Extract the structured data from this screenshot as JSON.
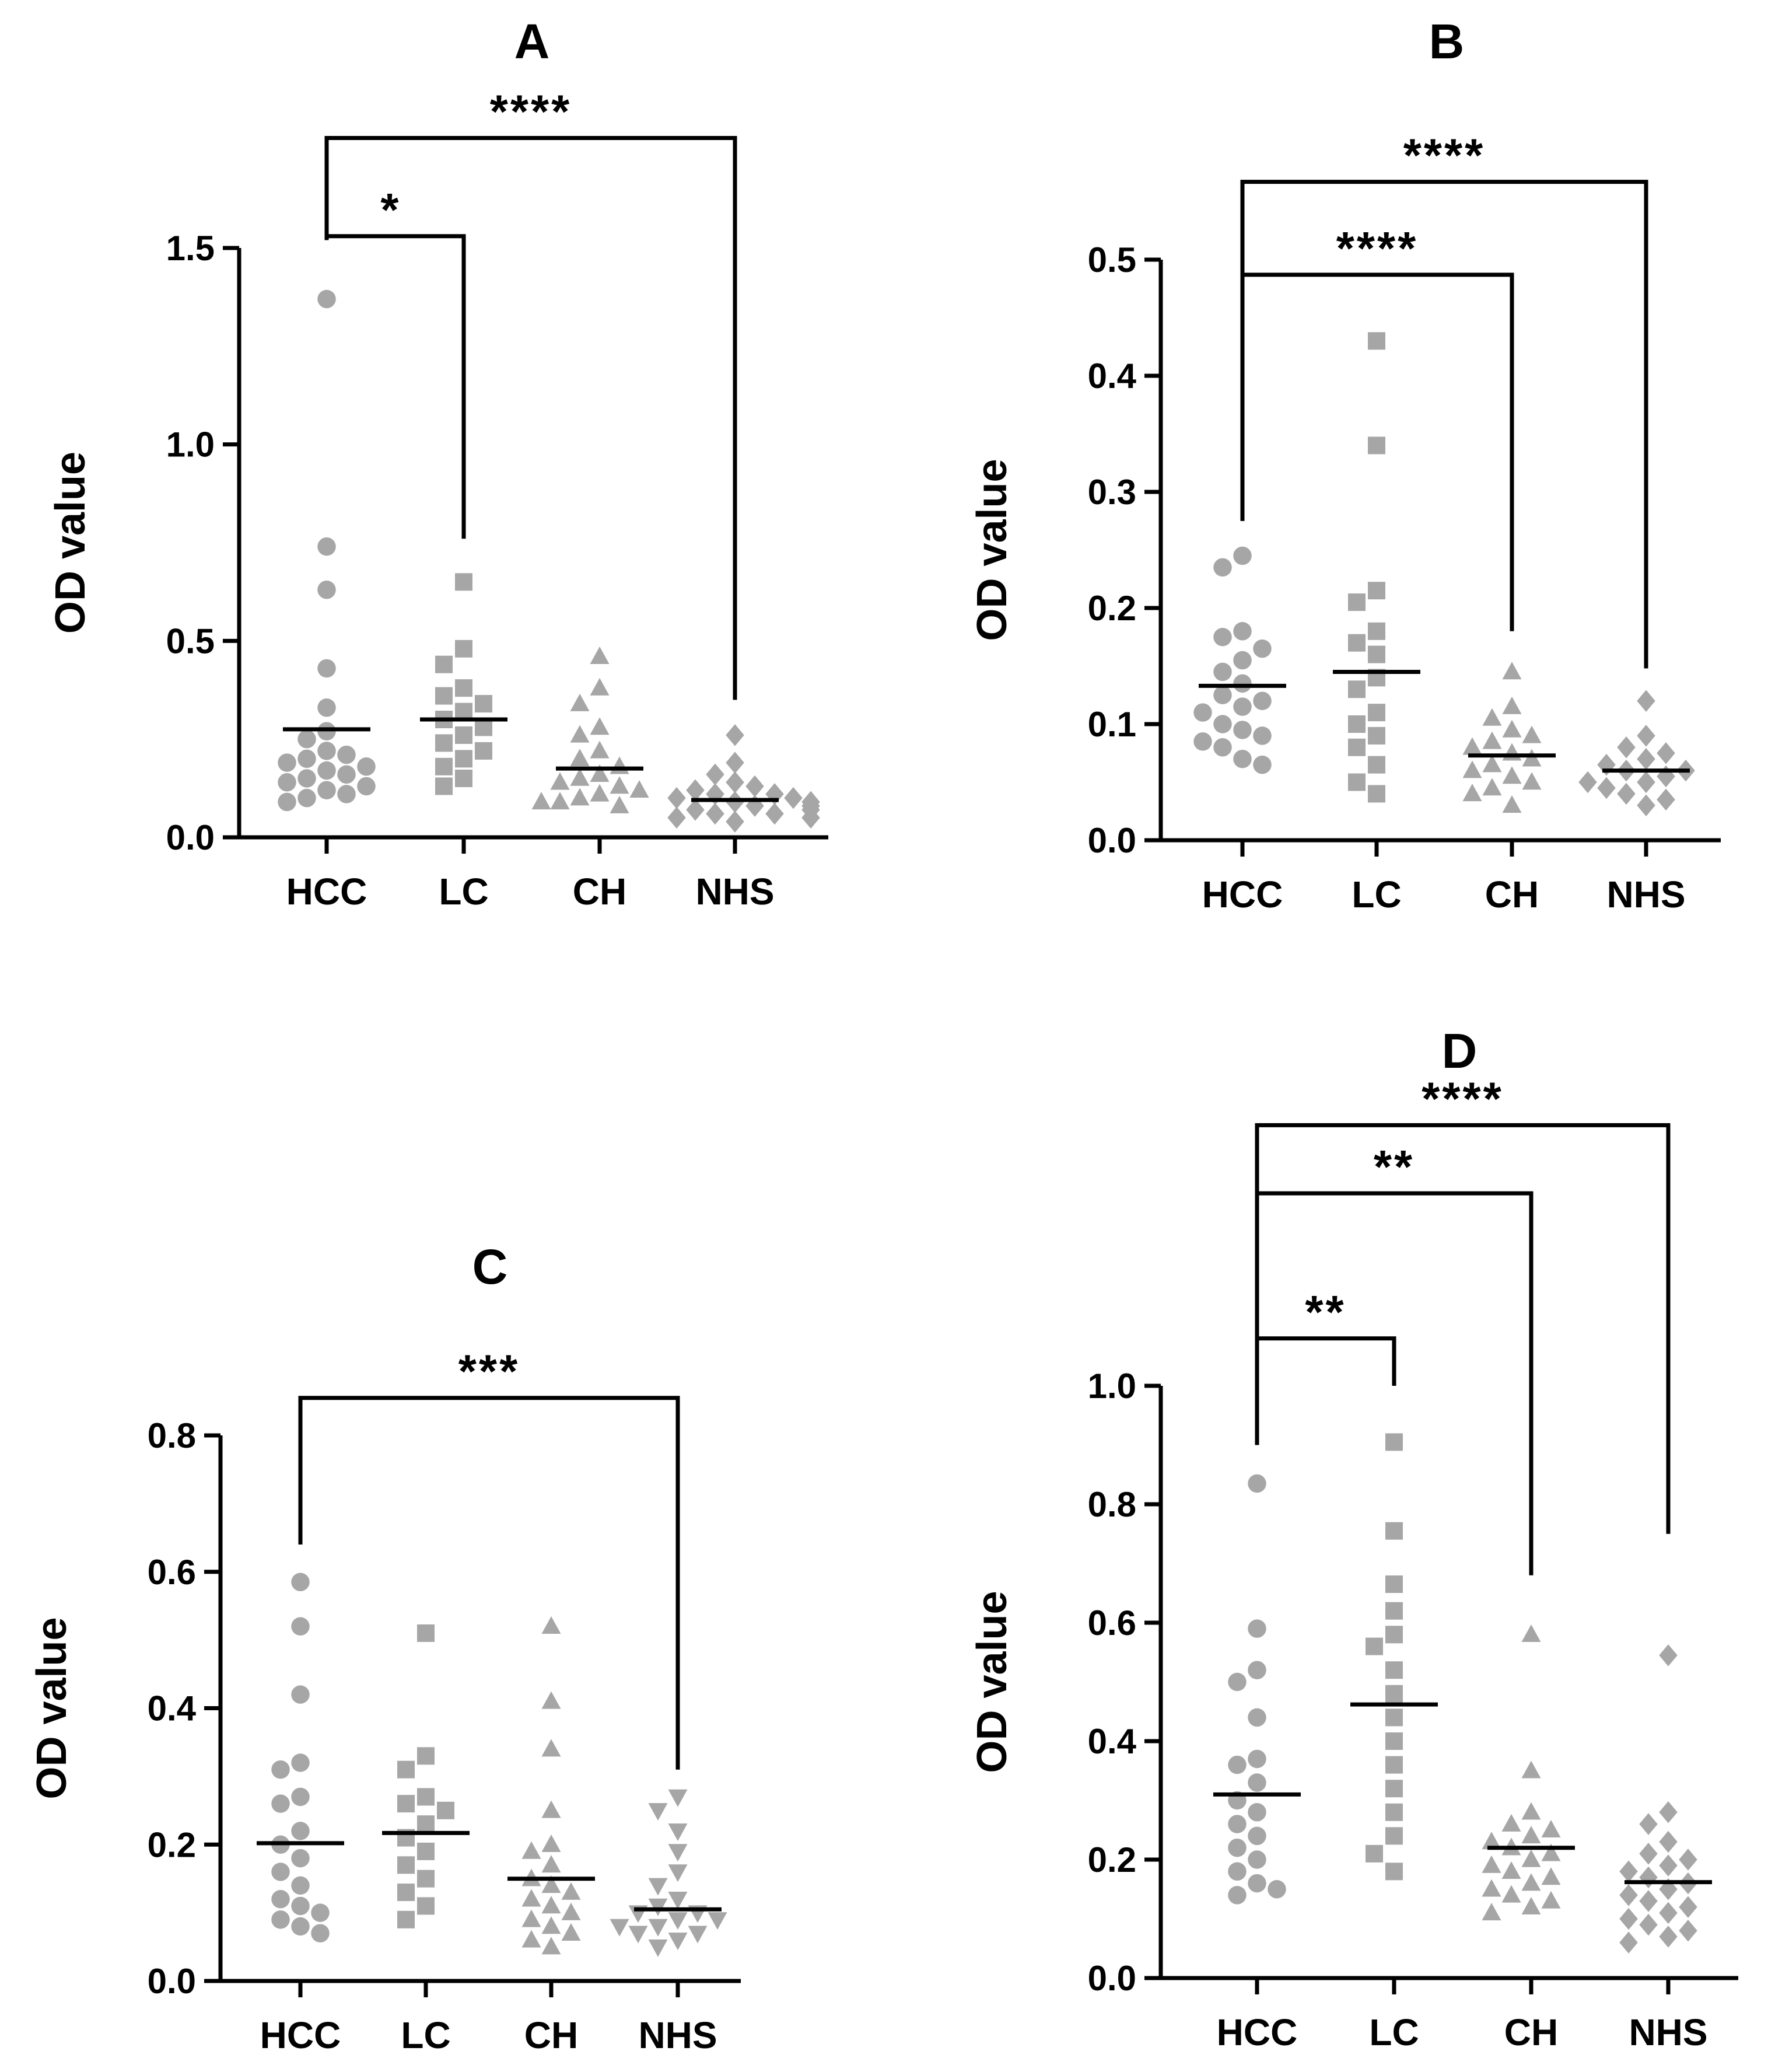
{
  "chart_data": [
    {
      "type": "scatter",
      "title": "A",
      "xlabel": "",
      "ylabel": "OD value",
      "ylim": [
        0,
        1.5
      ],
      "yticks": [
        0.0,
        0.5,
        1.0,
        1.5
      ],
      "ytick_labels": [
        "0.0",
        "0.5",
        "1.0",
        "1.5"
      ],
      "categories": [
        "HCC",
        "LC",
        "CH",
        "NHS"
      ],
      "marker_color": "#a6a6a6",
      "series": [
        {
          "name": "HCC",
          "marker": "circle",
          "mean": 0.275,
          "values": [
            1.37,
            0.74,
            0.63,
            0.43,
            0.33,
            0.27,
            0.25,
            0.22,
            0.21,
            0.2,
            0.19,
            0.18,
            0.17,
            0.16,
            0.15,
            0.14,
            0.13,
            0.12,
            0.11,
            0.1,
            0.09
          ]
        },
        {
          "name": "LC",
          "marker": "square",
          "mean": 0.3,
          "values": [
            0.65,
            0.48,
            0.44,
            0.38,
            0.36,
            0.34,
            0.32,
            0.3,
            0.28,
            0.26,
            0.24,
            0.22,
            0.2,
            0.18,
            0.15,
            0.13
          ]
        },
        {
          "name": "CH",
          "marker": "triangle",
          "mean": 0.175,
          "values": [
            0.46,
            0.38,
            0.34,
            0.28,
            0.26,
            0.22,
            0.2,
            0.18,
            0.16,
            0.15,
            0.14,
            0.13,
            0.12,
            0.11,
            0.1,
            0.09,
            0.09,
            0.08
          ]
        },
        {
          "name": "NHS",
          "marker": "diamond",
          "mean": 0.095,
          "values": [
            0.26,
            0.19,
            0.16,
            0.14,
            0.13,
            0.12,
            0.11,
            0.11,
            0.1,
            0.1,
            0.09,
            0.09,
            0.08,
            0.08,
            0.07,
            0.07,
            0.06,
            0.06,
            0.05,
            0.05,
            0.04
          ]
        }
      ],
      "significance": [
        {
          "from": "HCC",
          "to": "LC",
          "label": "*",
          "y": 1.53,
          "left_end": 1.52,
          "right_end": 0.76
        },
        {
          "from": "HCC",
          "to": "NHS",
          "label": "****",
          "y": 1.78,
          "left_end": 1.52,
          "right_end": 0.35
        }
      ]
    },
    {
      "type": "scatter",
      "title": "B",
      "xlabel": "",
      "ylabel": "OD value",
      "ylim": [
        0,
        0.5
      ],
      "yticks": [
        0.0,
        0.1,
        0.2,
        0.3,
        0.4,
        0.5
      ],
      "ytick_labels": [
        "0.0",
        "0.1",
        "0.2",
        "0.3",
        "0.4",
        "0.5"
      ],
      "categories": [
        "HCC",
        "LC",
        "CH",
        "NHS"
      ],
      "marker_color": "#a6a6a6",
      "series": [
        {
          "name": "HCC",
          "marker": "circle",
          "mean": 0.133,
          "values": [
            0.245,
            0.235,
            0.18,
            0.175,
            0.165,
            0.155,
            0.145,
            0.135,
            0.125,
            0.12,
            0.115,
            0.11,
            0.1,
            0.095,
            0.09,
            0.085,
            0.08,
            0.07,
            0.065
          ]
        },
        {
          "name": "LC",
          "marker": "square",
          "mean": 0.145,
          "values": [
            0.43,
            0.34,
            0.215,
            0.205,
            0.18,
            0.17,
            0.16,
            0.14,
            0.13,
            0.11,
            0.1,
            0.09,
            0.08,
            0.065,
            0.05,
            0.04
          ]
        },
        {
          "name": "CH",
          "marker": "triangle",
          "mean": 0.073,
          "values": [
            0.145,
            0.115,
            0.105,
            0.095,
            0.09,
            0.085,
            0.08,
            0.075,
            0.07,
            0.065,
            0.06,
            0.055,
            0.05,
            0.045,
            0.04,
            0.03
          ]
        },
        {
          "name": "NHS",
          "marker": "diamond",
          "mean": 0.06,
          "values": [
            0.12,
            0.09,
            0.08,
            0.075,
            0.07,
            0.065,
            0.06,
            0.06,
            0.055,
            0.05,
            0.05,
            0.045,
            0.04,
            0.035,
            0.03
          ]
        }
      ],
      "significance": [
        {
          "from": "HCC",
          "to": "CH",
          "label": "****",
          "y": 0.487,
          "left_end": 0.275,
          "right_end": 0.18
        },
        {
          "from": "HCC",
          "to": "NHS",
          "label": "****",
          "y": 0.567,
          "left_end": 0.275,
          "right_end": 0.148
        }
      ]
    },
    {
      "type": "scatter",
      "title": "C",
      "xlabel": "",
      "ylabel": "OD value",
      "ylim": [
        0,
        0.8
      ],
      "yticks": [
        0.0,
        0.2,
        0.4,
        0.6,
        0.8
      ],
      "ytick_labels": [
        "0.0",
        "0.2",
        "0.4",
        "0.6",
        "0.8"
      ],
      "categories": [
        "HCC",
        "LC",
        "CH",
        "NHS"
      ],
      "marker_color": "#a6a6a6",
      "series": [
        {
          "name": "HCC",
          "marker": "circle",
          "mean": 0.202,
          "values": [
            0.585,
            0.52,
            0.42,
            0.32,
            0.31,
            0.27,
            0.26,
            0.22,
            0.2,
            0.18,
            0.16,
            0.14,
            0.12,
            0.11,
            0.1,
            0.09,
            0.08,
            0.07
          ]
        },
        {
          "name": "LC",
          "marker": "square",
          "mean": 0.217,
          "values": [
            0.51,
            0.33,
            0.31,
            0.27,
            0.26,
            0.25,
            0.23,
            0.21,
            0.19,
            0.17,
            0.15,
            0.13,
            0.11,
            0.09
          ]
        },
        {
          "name": "CH",
          "marker": "triangle",
          "mean": 0.15,
          "values": [
            0.52,
            0.41,
            0.34,
            0.25,
            0.2,
            0.19,
            0.17,
            0.15,
            0.14,
            0.13,
            0.12,
            0.11,
            0.1,
            0.09,
            0.08,
            0.07,
            0.06,
            0.05
          ]
        },
        {
          "name": "NHS",
          "marker": "triangle-down",
          "mean": 0.105,
          "values": [
            0.27,
            0.25,
            0.22,
            0.19,
            0.16,
            0.14,
            0.12,
            0.11,
            0.1,
            0.1,
            0.09,
            0.09,
            0.08,
            0.08,
            0.07,
            0.07,
            0.06,
            0.05
          ]
        }
      ],
      "significance": [
        {
          "from": "HCC",
          "to": "NHS",
          "label": "***",
          "y": 0.855,
          "left_end": 0.64,
          "right_end": 0.31
        }
      ]
    },
    {
      "type": "scatter",
      "title": "D",
      "xlabel": "",
      "ylabel": "OD value",
      "ylim": [
        0,
        1.0
      ],
      "yticks": [
        0.0,
        0.2,
        0.4,
        0.6,
        0.8,
        1.0
      ],
      "ytick_labels": [
        "0.0",
        "0.2",
        "0.4",
        "0.6",
        "0.8",
        "1.0"
      ],
      "categories": [
        "HCC",
        "LC",
        "CH",
        "NHS"
      ],
      "marker_color": "#a6a6a6",
      "series": [
        {
          "name": "HCC",
          "marker": "circle",
          "mean": 0.31,
          "values": [
            0.835,
            0.59,
            0.52,
            0.5,
            0.44,
            0.37,
            0.36,
            0.33,
            0.3,
            0.28,
            0.26,
            0.24,
            0.22,
            0.2,
            0.18,
            0.16,
            0.15,
            0.14
          ]
        },
        {
          "name": "LC",
          "marker": "square",
          "mean": 0.462,
          "values": [
            0.905,
            0.755,
            0.665,
            0.62,
            0.58,
            0.56,
            0.52,
            0.48,
            0.44,
            0.4,
            0.36,
            0.32,
            0.28,
            0.24,
            0.21,
            0.18
          ]
        },
        {
          "name": "CH",
          "marker": "triangle",
          "mean": 0.22,
          "values": [
            0.58,
            0.35,
            0.28,
            0.26,
            0.25,
            0.24,
            0.23,
            0.22,
            0.21,
            0.2,
            0.19,
            0.18,
            0.17,
            0.16,
            0.15,
            0.14,
            0.13,
            0.12,
            0.11
          ]
        },
        {
          "name": "NHS",
          "marker": "diamond",
          "mean": 0.162,
          "values": [
            0.545,
            0.28,
            0.26,
            0.23,
            0.21,
            0.2,
            0.19,
            0.18,
            0.17,
            0.16,
            0.15,
            0.14,
            0.13,
            0.12,
            0.11,
            0.1,
            0.09,
            0.08,
            0.07,
            0.06
          ]
        }
      ],
      "significance": [
        {
          "from": "HCC",
          "to": "LC",
          "label": "**",
          "y": 1.08,
          "left_end": 0.9,
          "right_end": 1.0
        },
        {
          "from": "HCC",
          "to": "CH",
          "label": "**",
          "y": 1.325,
          "left_end": 0.9,
          "right_end": 0.68
        },
        {
          "from": "HCC",
          "to": "NHS",
          "label": "****",
          "y": 1.44,
          "left_end": 0.9,
          "right_end": 0.75
        }
      ]
    }
  ]
}
